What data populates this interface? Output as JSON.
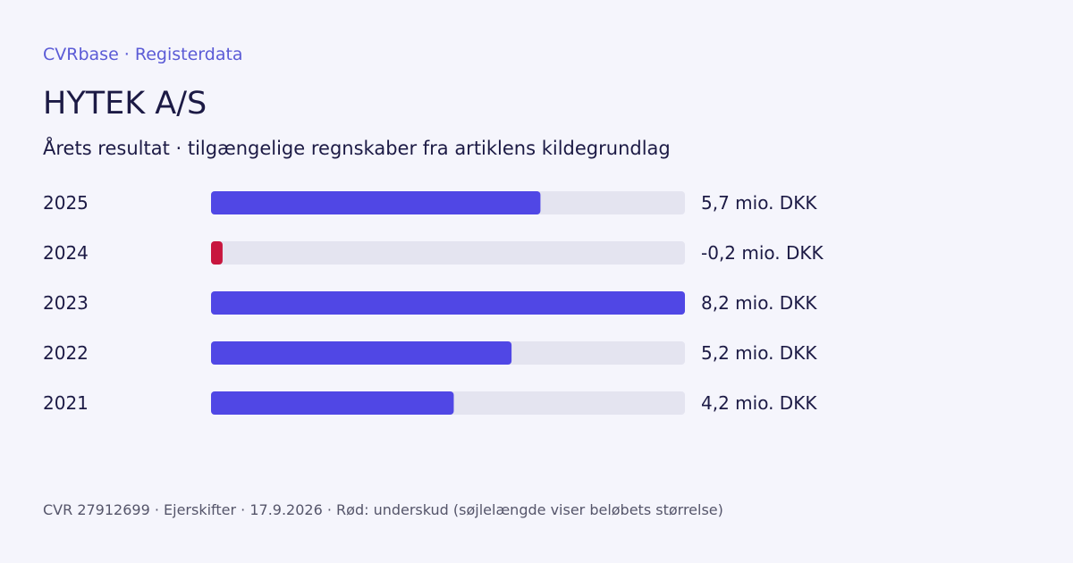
{
  "header": {
    "brand": "CVRbase · Registerdata",
    "company": "HYTEK A/S",
    "subtitle": "Årets resultat · tilgængelige regnskaber fra artiklens kildegrundlag"
  },
  "footer": {
    "text": "CVR 27912699 · Ejerskifter · 17.9.2026 · Rød: underskud (søjlelængde viser beløbets størrelse)"
  },
  "colors": {
    "positive": "#5047e5",
    "negative": "#c8163e",
    "track": "#e4e4f0",
    "text": "#1c1a45"
  },
  "chart_data": {
    "type": "bar",
    "orientation": "horizontal",
    "categories": [
      "2025",
      "2024",
      "2023",
      "2022",
      "2021"
    ],
    "values": [
      5.7,
      -0.2,
      8.2,
      5.2,
      4.2
    ],
    "value_labels": [
      "5,7 mio. DKK",
      "-0,2 mio. DKK",
      "8,2 mio. DKK",
      "5,2 mio. DKK",
      "4,2 mio. DKK"
    ],
    "max_abs": 8.2
  }
}
